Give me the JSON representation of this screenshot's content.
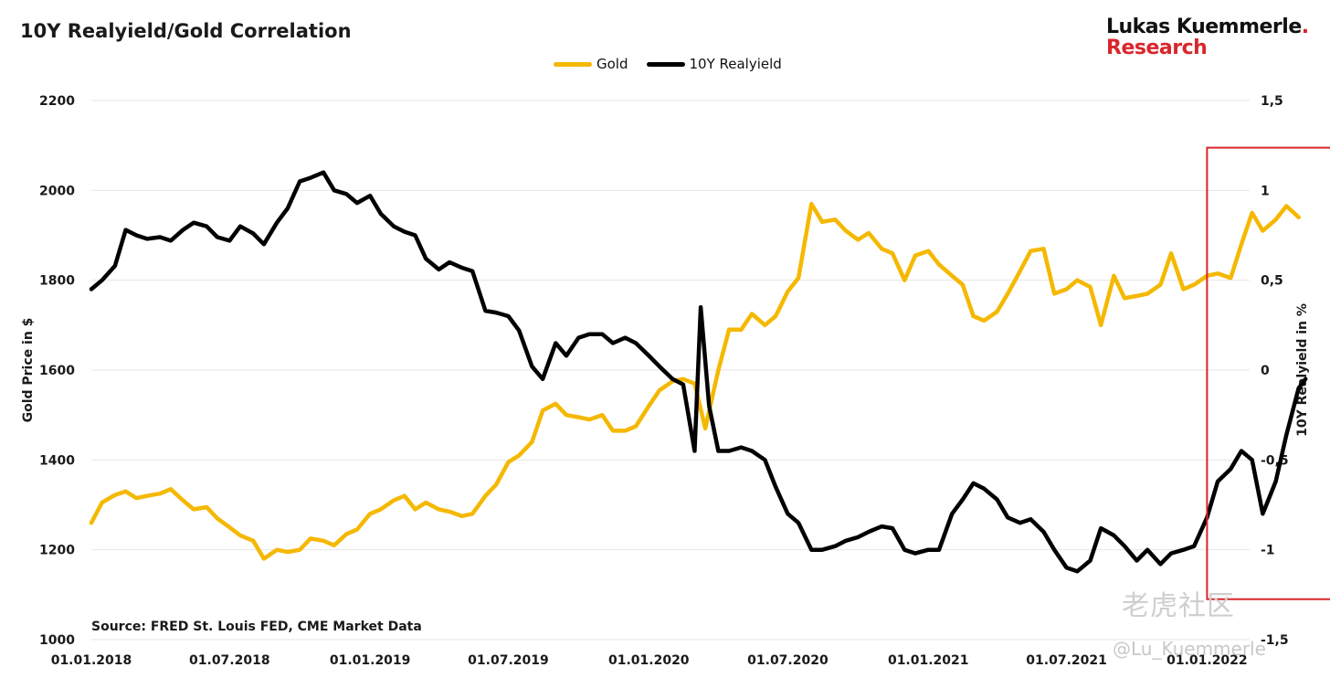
{
  "chart_data": {
    "type": "line",
    "title": "10Y Realyield/Gold Correlation",
    "source": "Source: FRED St. Louis FED, CME Market Data",
    "legend_position": "top-center",
    "grid": true,
    "x_tick_labels": [
      "01.01.2018",
      "01.07.2018",
      "01.01.2019",
      "01.07.2019",
      "01.01.2020",
      "01.07.2020",
      "01.01.2021",
      "01.07.2021",
      "01.01.2022"
    ],
    "x_range": [
      "2018-01-01",
      "2022-06-30"
    ],
    "left_axis": {
      "label": "Gold Price in $",
      "range": [
        1000,
        2200
      ],
      "ticks": [
        1000,
        1200,
        1400,
        1600,
        1800,
        2000,
        2200
      ]
    },
    "right_axis": {
      "label": "10Y Realyield in %",
      "range": [
        -1.5,
        1.5
      ],
      "ticks": [
        "-1,5",
        "-1",
        "-0,5",
        "0",
        "0,5",
        "1",
        "1,5"
      ],
      "tick_values": [
        -1.5,
        -1,
        -0.5,
        0,
        0.5,
        1,
        1.5
      ]
    },
    "series": [
      {
        "name": "Gold",
        "axis": "left",
        "color": "#f5b800",
        "points": [
          [
            "2018-01-01",
            1260
          ],
          [
            "2018-01-15",
            1305
          ],
          [
            "2018-02-01",
            1322
          ],
          [
            "2018-02-15",
            1330
          ],
          [
            "2018-03-01",
            1315
          ],
          [
            "2018-03-15",
            1320
          ],
          [
            "2018-04-01",
            1325
          ],
          [
            "2018-04-15",
            1335
          ],
          [
            "2018-05-01",
            1310
          ],
          [
            "2018-05-15",
            1290
          ],
          [
            "2018-06-01",
            1295
          ],
          [
            "2018-06-15",
            1270
          ],
          [
            "2018-07-01",
            1250
          ],
          [
            "2018-07-15",
            1232
          ],
          [
            "2018-08-01",
            1220
          ],
          [
            "2018-08-15",
            1180
          ],
          [
            "2018-09-01",
            1200
          ],
          [
            "2018-09-15",
            1195
          ],
          [
            "2018-10-01",
            1200
          ],
          [
            "2018-10-15",
            1225
          ],
          [
            "2018-11-01",
            1220
          ],
          [
            "2018-11-15",
            1210
          ],
          [
            "2018-12-01",
            1235
          ],
          [
            "2018-12-15",
            1245
          ],
          [
            "2019-01-01",
            1280
          ],
          [
            "2019-01-15",
            1290
          ],
          [
            "2019-02-01",
            1310
          ],
          [
            "2019-02-15",
            1320
          ],
          [
            "2019-03-01",
            1290
          ],
          [
            "2019-03-15",
            1305
          ],
          [
            "2019-04-01",
            1290
          ],
          [
            "2019-04-15",
            1285
          ],
          [
            "2019-05-01",
            1275
          ],
          [
            "2019-05-15",
            1280
          ],
          [
            "2019-06-01",
            1320
          ],
          [
            "2019-06-15",
            1345
          ],
          [
            "2019-07-01",
            1395
          ],
          [
            "2019-07-15",
            1410
          ],
          [
            "2019-08-01",
            1440
          ],
          [
            "2019-08-15",
            1510
          ],
          [
            "2019-09-01",
            1525
          ],
          [
            "2019-09-15",
            1500
          ],
          [
            "2019-10-01",
            1495
          ],
          [
            "2019-10-15",
            1490
          ],
          [
            "2019-11-01",
            1500
          ],
          [
            "2019-11-15",
            1465
          ],
          [
            "2019-12-01",
            1465
          ],
          [
            "2019-12-15",
            1475
          ],
          [
            "2020-01-01",
            1520
          ],
          [
            "2020-01-15",
            1555
          ],
          [
            "2020-02-01",
            1575
          ],
          [
            "2020-02-15",
            1580
          ],
          [
            "2020-03-01",
            1570
          ],
          [
            "2020-03-15",
            1470
          ],
          [
            "2020-04-01",
            1600
          ],
          [
            "2020-04-15",
            1690
          ],
          [
            "2020-05-01",
            1690
          ],
          [
            "2020-05-15",
            1725
          ],
          [
            "2020-06-01",
            1700
          ],
          [
            "2020-06-15",
            1720
          ],
          [
            "2020-07-01",
            1775
          ],
          [
            "2020-07-15",
            1805
          ],
          [
            "2020-08-01",
            1970
          ],
          [
            "2020-08-15",
            1930
          ],
          [
            "2020-09-01",
            1935
          ],
          [
            "2020-09-15",
            1910
          ],
          [
            "2020-10-01",
            1890
          ],
          [
            "2020-10-15",
            1905
          ],
          [
            "2020-11-01",
            1870
          ],
          [
            "2020-11-15",
            1860
          ],
          [
            "2020-12-01",
            1800
          ],
          [
            "2020-12-15",
            1855
          ],
          [
            "2021-01-01",
            1865
          ],
          [
            "2021-01-15",
            1835
          ],
          [
            "2021-02-01",
            1810
          ],
          [
            "2021-02-15",
            1790
          ],
          [
            "2021-03-01",
            1720
          ],
          [
            "2021-03-15",
            1710
          ],
          [
            "2021-04-01",
            1730
          ],
          [
            "2021-04-15",
            1770
          ],
          [
            "2021-05-01",
            1820
          ],
          [
            "2021-05-15",
            1865
          ],
          [
            "2021-06-01",
            1870
          ],
          [
            "2021-06-15",
            1770
          ],
          [
            "2021-07-01",
            1780
          ],
          [
            "2021-07-15",
            1800
          ],
          [
            "2021-08-01",
            1785
          ],
          [
            "2021-08-15",
            1700
          ],
          [
            "2021-09-01",
            1810
          ],
          [
            "2021-09-15",
            1760
          ],
          [
            "2021-10-01",
            1765
          ],
          [
            "2021-10-15",
            1770
          ],
          [
            "2021-11-01",
            1790
          ],
          [
            "2021-11-15",
            1860
          ],
          [
            "2021-12-01",
            1780
          ],
          [
            "2021-12-15",
            1790
          ],
          [
            "2022-01-01",
            1810
          ],
          [
            "2022-01-15",
            1815
          ],
          [
            "2022-02-01",
            1805
          ],
          [
            "2022-02-15",
            1880
          ],
          [
            "2022-03-01",
            1950
          ],
          [
            "2022-03-15",
            1910
          ],
          [
            "2022-04-01",
            1935
          ],
          [
            "2022-04-15",
            1965
          ],
          [
            "2022-05-01",
            1940
          ]
        ]
      },
      {
        "name": "10Y Realyield",
        "axis": "right",
        "color": "#000000",
        "points": [
          [
            "2018-01-01",
            0.45
          ],
          [
            "2018-01-15",
            0.5
          ],
          [
            "2018-02-01",
            0.58
          ],
          [
            "2018-02-15",
            0.78
          ],
          [
            "2018-03-01",
            0.75
          ],
          [
            "2018-03-15",
            0.73
          ],
          [
            "2018-04-01",
            0.74
          ],
          [
            "2018-04-15",
            0.72
          ],
          [
            "2018-05-01",
            0.78
          ],
          [
            "2018-05-15",
            0.82
          ],
          [
            "2018-06-01",
            0.8
          ],
          [
            "2018-06-15",
            0.74
          ],
          [
            "2018-07-01",
            0.72
          ],
          [
            "2018-07-15",
            0.8
          ],
          [
            "2018-08-01",
            0.76
          ],
          [
            "2018-08-15",
            0.7
          ],
          [
            "2018-09-01",
            0.82
          ],
          [
            "2018-09-15",
            0.9
          ],
          [
            "2018-10-01",
            1.05
          ],
          [
            "2018-10-15",
            1.07
          ],
          [
            "2018-11-01",
            1.1
          ],
          [
            "2018-11-15",
            1.0
          ],
          [
            "2018-12-01",
            0.98
          ],
          [
            "2018-12-15",
            0.93
          ],
          [
            "2019-01-01",
            0.97
          ],
          [
            "2019-01-15",
            0.87
          ],
          [
            "2019-02-01",
            0.8
          ],
          [
            "2019-02-15",
            0.77
          ],
          [
            "2019-03-01",
            0.75
          ],
          [
            "2019-03-15",
            0.62
          ],
          [
            "2019-04-01",
            0.56
          ],
          [
            "2019-04-15",
            0.6
          ],
          [
            "2019-05-01",
            0.57
          ],
          [
            "2019-05-15",
            0.55
          ],
          [
            "2019-06-01",
            0.33
          ],
          [
            "2019-06-15",
            0.32
          ],
          [
            "2019-07-01",
            0.3
          ],
          [
            "2019-07-15",
            0.22
          ],
          [
            "2019-08-01",
            0.02
          ],
          [
            "2019-08-15",
            -0.05
          ],
          [
            "2019-09-01",
            0.15
          ],
          [
            "2019-09-15",
            0.08
          ],
          [
            "2019-10-01",
            0.18
          ],
          [
            "2019-10-15",
            0.2
          ],
          [
            "2019-11-01",
            0.2
          ],
          [
            "2019-11-15",
            0.15
          ],
          [
            "2019-12-01",
            0.18
          ],
          [
            "2019-12-15",
            0.15
          ],
          [
            "2020-01-01",
            0.08
          ],
          [
            "2020-01-15",
            0.02
          ],
          [
            "2020-02-01",
            -0.05
          ],
          [
            "2020-02-15",
            -0.08
          ],
          [
            "2020-03-01",
            -0.45
          ],
          [
            "2020-03-09",
            0.35
          ],
          [
            "2020-03-20",
            -0.2
          ],
          [
            "2020-04-01",
            -0.45
          ],
          [
            "2020-04-15",
            -0.45
          ],
          [
            "2020-05-01",
            -0.43
          ],
          [
            "2020-05-15",
            -0.45
          ],
          [
            "2020-06-01",
            -0.5
          ],
          [
            "2020-06-15",
            -0.65
          ],
          [
            "2020-07-01",
            -0.8
          ],
          [
            "2020-07-15",
            -0.85
          ],
          [
            "2020-08-01",
            -1.0
          ],
          [
            "2020-08-15",
            -1.0
          ],
          [
            "2020-09-01",
            -0.98
          ],
          [
            "2020-09-15",
            -0.95
          ],
          [
            "2020-10-01",
            -0.93
          ],
          [
            "2020-10-15",
            -0.9
          ],
          [
            "2020-11-01",
            -0.87
          ],
          [
            "2020-11-15",
            -0.88
          ],
          [
            "2020-12-01",
            -1.0
          ],
          [
            "2020-12-15",
            -1.02
          ],
          [
            "2021-01-01",
            -1.0
          ],
          [
            "2021-01-15",
            -1.0
          ],
          [
            "2021-02-01",
            -0.8
          ],
          [
            "2021-02-15",
            -0.72
          ],
          [
            "2021-03-01",
            -0.63
          ],
          [
            "2021-03-15",
            -0.66
          ],
          [
            "2021-04-01",
            -0.72
          ],
          [
            "2021-04-15",
            -0.82
          ],
          [
            "2021-05-01",
            -0.85
          ],
          [
            "2021-05-15",
            -0.83
          ],
          [
            "2021-06-01",
            -0.9
          ],
          [
            "2021-06-15",
            -1.0
          ],
          [
            "2021-07-01",
            -1.1
          ],
          [
            "2021-07-15",
            -1.12
          ],
          [
            "2021-08-01",
            -1.06
          ],
          [
            "2021-08-15",
            -0.88
          ],
          [
            "2021-09-01",
            -0.92
          ],
          [
            "2021-09-15",
            -0.98
          ],
          [
            "2021-10-01",
            -1.06
          ],
          [
            "2021-10-15",
            -1.0
          ],
          [
            "2021-11-01",
            -1.08
          ],
          [
            "2021-11-15",
            -1.02
          ],
          [
            "2021-12-01",
            -1.0
          ],
          [
            "2021-12-15",
            -0.98
          ],
          [
            "2022-01-01",
            -0.82
          ],
          [
            "2022-01-15",
            -0.62
          ],
          [
            "2022-02-01",
            -0.55
          ],
          [
            "2022-02-15",
            -0.45
          ],
          [
            "2022-03-01",
            -0.5
          ],
          [
            "2022-03-15",
            -0.8
          ],
          [
            "2022-04-01",
            -0.62
          ],
          [
            "2022-04-15",
            -0.36
          ],
          [
            "2022-05-01",
            -0.1
          ],
          [
            "2022-05-10",
            -0.05
          ]
        ]
      }
    ],
    "highlight_box": {
      "x": [
        "2022-01-01",
        "2022-06-25"
      ],
      "y_left": [
        1090,
        2095
      ],
      "color": "#d9262c"
    }
  },
  "branding": {
    "line1": "Lukas Kuemmerle",
    "dot": ".",
    "line2": "Research"
  },
  "watermark": {
    "line1": "老虎社区",
    "line2": "@Lu_Kuemmerle"
  }
}
